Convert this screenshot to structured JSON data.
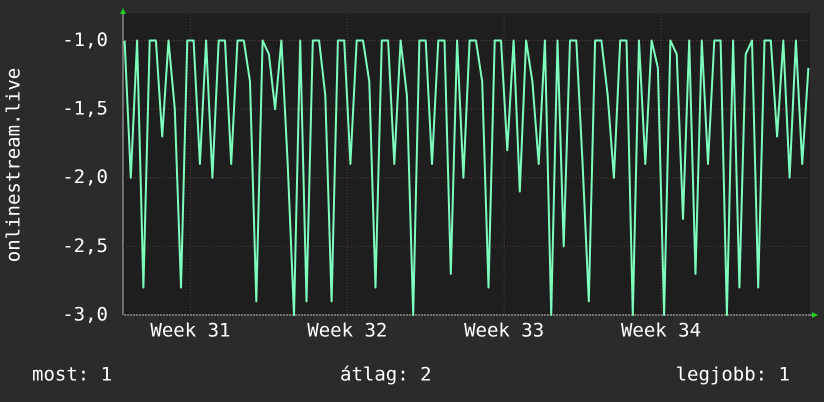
{
  "chart_data": {
    "type": "line",
    "ylabel": "onlinestream.live",
    "color": "#7dffbd",
    "grid": true,
    "ylim": [
      -3,
      -0.8
    ],
    "yticks": [
      {
        "value": -3,
        "label": "-3,0"
      },
      {
        "value": -2.5,
        "label": "-2,5"
      },
      {
        "value": -2,
        "label": "-2,0"
      },
      {
        "value": -1.5,
        "label": "-1,5"
      },
      {
        "value": -1,
        "label": "-1,0"
      }
    ],
    "xlim": [
      30.57,
      34.95
    ],
    "xticks": [
      {
        "value": 31,
        "label": "Week 31"
      },
      {
        "value": 32,
        "label": "Week 32"
      },
      {
        "value": 33,
        "label": "Week 33"
      },
      {
        "value": 34,
        "label": "Week 34"
      }
    ],
    "x": [
      30.58,
      30.62,
      30.66,
      30.7,
      30.74,
      30.78,
      30.82,
      30.86,
      30.9,
      30.94,
      30.98,
      31.02,
      31.06,
      31.1,
      31.14,
      31.18,
      31.22,
      31.26,
      31.3,
      31.34,
      31.38,
      31.42,
      31.46,
      31.5,
      31.54,
      31.58,
      31.62,
      31.66,
      31.7,
      31.74,
      31.78,
      31.82,
      31.86,
      31.9,
      31.94,
      31.98,
      32.02,
      32.06,
      32.1,
      32.14,
      32.18,
      32.22,
      32.26,
      32.3,
      32.34,
      32.38,
      32.42,
      32.46,
      32.5,
      32.54,
      32.58,
      32.62,
      32.66,
      32.7,
      32.74,
      32.78,
      32.82,
      32.86,
      32.9,
      32.94,
      32.98,
      33.02,
      33.06,
      33.1,
      33.14,
      33.18,
      33.22,
      33.26,
      33.3,
      33.34,
      33.38,
      33.42,
      33.46,
      33.5,
      33.54,
      33.58,
      33.62,
      33.66,
      33.7,
      33.74,
      33.78,
      33.82,
      33.86,
      33.9,
      33.94,
      33.98,
      34.02,
      34.06,
      34.1,
      34.14,
      34.18,
      34.22,
      34.26,
      34.3,
      34.34,
      34.38,
      34.42,
      34.46,
      34.5,
      34.54,
      34.58,
      34.62,
      34.66,
      34.7,
      34.74,
      34.78,
      34.82,
      34.86,
      34.9,
      34.94
    ],
    "values": [
      -1,
      -2,
      -1,
      -2.8,
      -1,
      -1,
      -1.7,
      -1,
      -1.5,
      -2.8,
      -1,
      -1,
      -1.9,
      -1,
      -2,
      -1,
      -1,
      -1.9,
      -1,
      -1,
      -1.3,
      -2.9,
      -1,
      -1.1,
      -1.5,
      -1,
      -1.9,
      -3,
      -1,
      -2.9,
      -1,
      -1,
      -1.4,
      -2.9,
      -1,
      -1,
      -1.9,
      -1,
      -1,
      -1.3,
      -2.8,
      -1,
      -1,
      -1.9,
      -1,
      -1.4,
      -3,
      -1,
      -1,
      -1.9,
      -1,
      -1,
      -2.7,
      -1,
      -2,
      -1,
      -1,
      -1.3,
      -2.8,
      -1,
      -1,
      -1.8,
      -1,
      -2.1,
      -1,
      -1.3,
      -1.9,
      -1,
      -3,
      -1,
      -2.5,
      -1,
      -1,
      -1.9,
      -2.9,
      -1,
      -1,
      -1.4,
      -2,
      -1,
      -1,
      -3,
      -1,
      -1.9,
      -1,
      -1.2,
      -3,
      -1,
      -1.1,
      -2.3,
      -1,
      -2.7,
      -1,
      -1.9,
      -1,
      -1,
      -3,
      -1,
      -2.8,
      -1.1,
      -1,
      -2.8,
      -1,
      -1,
      -1.7,
      -1,
      -2,
      -1,
      -1.9,
      -1.2
    ]
  },
  "footer": {
    "current": "most: 1",
    "average": "átlag: 2",
    "best": "legjobb: 1"
  }
}
